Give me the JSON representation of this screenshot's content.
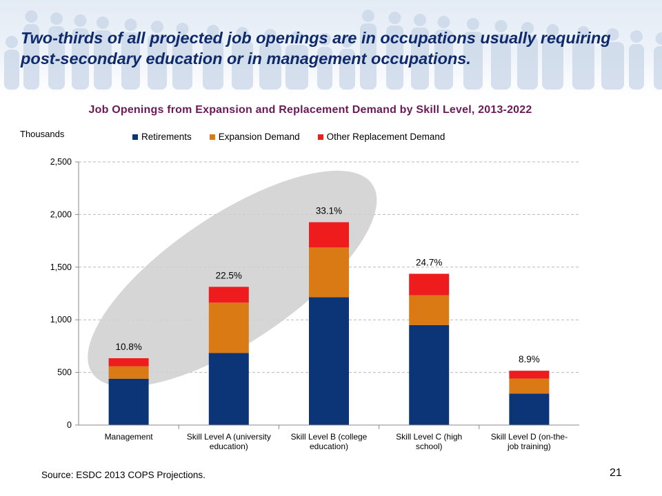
{
  "slide": {
    "headline": "Two-thirds of all projected job openings are in occupations usually requiring post-secondary education or in management occupations.",
    "source": "Source: ESDC 2013 COPS Projections.",
    "page_number": "21"
  },
  "chart_data": {
    "type": "bar",
    "stacked": true,
    "title": "Job Openings from Expansion and Replacement Demand by Skill Level, 2013-2022",
    "ylabel": "Thousands",
    "xlabel": "",
    "ylim": [
      0,
      2500
    ],
    "yticks": [
      0,
      500,
      1000,
      1500,
      2000,
      2500
    ],
    "ytick_labels": [
      "0",
      "500",
      "1,000",
      "1,500",
      "2,000",
      "2,500"
    ],
    "grid": true,
    "legend_position": "top",
    "categories": [
      [
        "Management"
      ],
      [
        "Skill Level A (university",
        "education)"
      ],
      [
        "Skill Level B (college",
        "education)"
      ],
      [
        "Skill Level C (high",
        "school)"
      ],
      [
        "Skill Level D (on-the-",
        "job training)"
      ]
    ],
    "series": [
      {
        "name": "Retirements",
        "color": "#0c3577",
        "values": [
          440,
          685,
          1215,
          950,
          298
        ]
      },
      {
        "name": "Expansion Demand",
        "color": "#d97a14",
        "values": [
          118,
          478,
          472,
          282,
          143
        ]
      },
      {
        "name": "Other Replacement Demand",
        "color": "#ee1c1c",
        "values": [
          77,
          150,
          240,
          205,
          75
        ]
      }
    ],
    "data_labels": [
      "10.8%",
      "22.5%",
      "33.1%",
      "24.7%",
      "8.9%"
    ]
  }
}
